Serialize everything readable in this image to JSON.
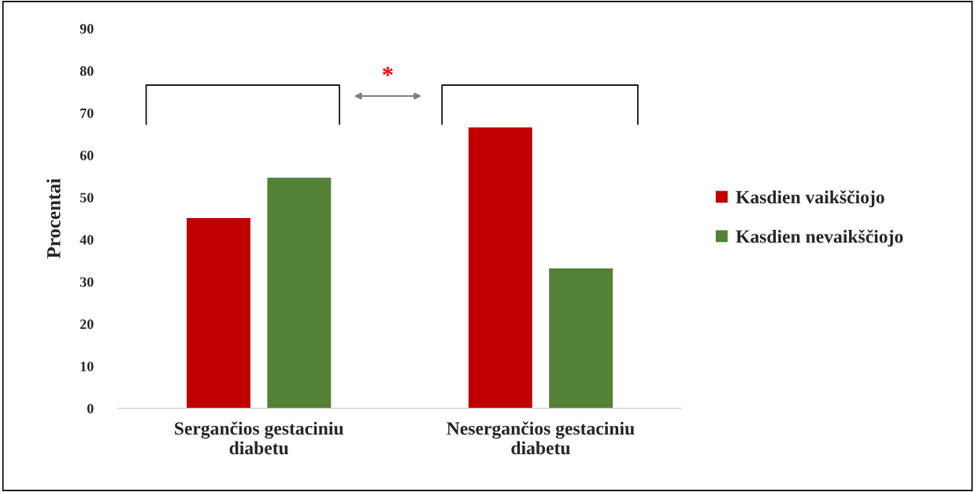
{
  "chart_data": {
    "type": "bar",
    "ylabel": "Procentai",
    "categories": [
      "Sergančios gestaciniu\ndiabetu",
      "Nesergančios gestaciniu\ndiabetu"
    ],
    "series": [
      {
        "name": "Kasdien vaikščiojo",
        "color": "#c00000",
        "values": [
          45.2,
          66.7
        ]
      },
      {
        "name": "Kasdien nevaikščiojo",
        "color": "#538135",
        "values": [
          54.8,
          33.3
        ]
      }
    ],
    "ylim": [
      0,
      90
    ],
    "yticks": [
      0,
      10,
      20,
      30,
      40,
      50,
      60,
      70,
      80,
      90
    ],
    "grid": false,
    "legend": "right",
    "annotations": [
      "*"
    ]
  }
}
